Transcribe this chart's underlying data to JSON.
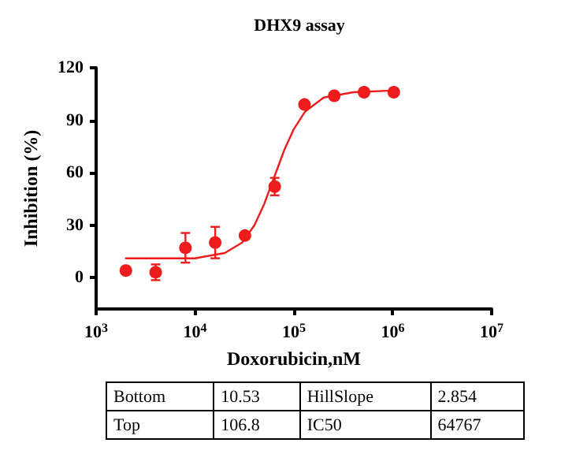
{
  "chart_data": {
    "type": "scatter",
    "title": "DHX9 assay",
    "xlabel": "Doxorubicin,nM",
    "ylabel": "Inhibition (%)",
    "log": "x",
    "xlim": [
      1000,
      10000000
    ],
    "xticks": [
      {
        "value": 1000,
        "label": "10$^{3}$"
      },
      {
        "value": 10000,
        "label": "10$^{4}$"
      },
      {
        "value": 100000,
        "label": "10$^{5}$"
      },
      {
        "value": 1000000,
        "label": "10$^{6}$"
      },
      {
        "value": 10000000,
        "label": "10$^{7}$"
      }
    ],
    "ylim": [
      -18,
      120
    ],
    "yticks": [
      0,
      30,
      60,
      90,
      120
    ],
    "grid": false,
    "series": [
      {
        "color": "#ee1c1c",
        "marker": "circle",
        "x": [
          2000,
          4000,
          8000,
          16000,
          32000,
          64000,
          128000,
          256000,
          512000,
          1024000
        ],
        "values": [
          4,
          3,
          17,
          20,
          24,
          52,
          99,
          104,
          106,
          106
        ],
        "errors": [
          null,
          4.5,
          8.5,
          9,
          null,
          5,
          null,
          null,
          null,
          null
        ]
      },
      {
        "type": "line",
        "color": "#ee1c1c",
        "marker": "none",
        "line_style": "solid",
        "x": [
          2000,
          10000,
          20000,
          30000,
          40000,
          50000,
          64767,
          80000,
          100000,
          130000,
          200000,
          400000,
          1000000
        ],
        "values": [
          11,
          11,
          14,
          20,
          30,
          42,
          59,
          73,
          85,
          95,
          103,
          106,
          107
        ]
      }
    ],
    "annotations": [
      "Bottom",
      "10.53",
      "HillSlope",
      "2.854",
      "Top",
      "106.8",
      "IC50",
      "64767"
    ]
  }
}
